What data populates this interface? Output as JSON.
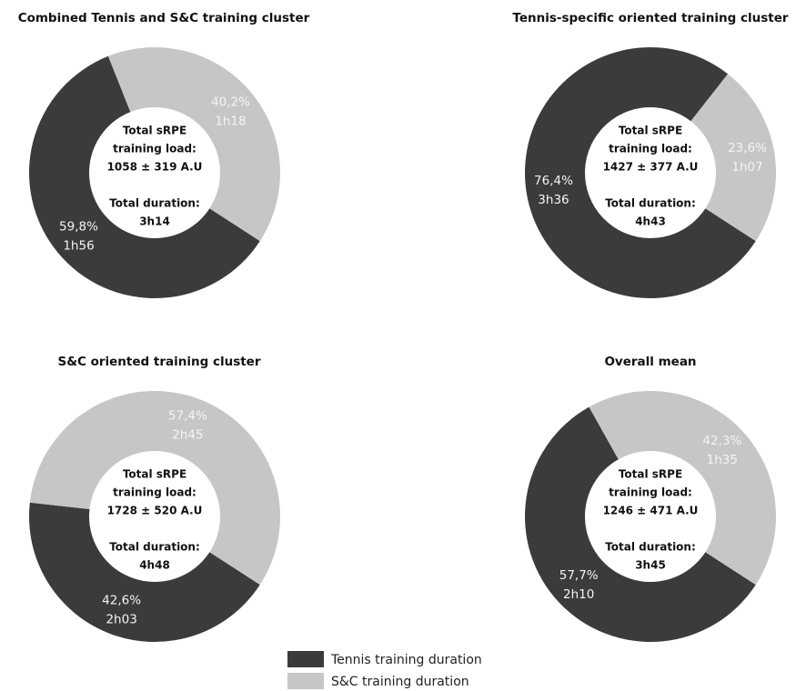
{
  "chart_data": [
    {
      "type": "pie",
      "title": "Combined Tennis and S&C training cluster",
      "values": [
        59.8,
        40.2
      ],
      "value_labels": [
        "59,8%",
        "40,2%"
      ],
      "duration_labels": [
        "1h56",
        "1h18"
      ],
      "center_text": [
        "Total sRPE",
        "training load:",
        "1058 ± 319 A.U",
        "Total duration:",
        "3h14"
      ]
    },
    {
      "type": "pie",
      "title": "Tennis-specific oriented training cluster",
      "values": [
        76.4,
        23.6
      ],
      "value_labels": [
        "76,4%",
        "23,6%"
      ],
      "duration_labels": [
        "3h36",
        "1h07"
      ],
      "center_text": [
        "Total sRPE",
        "training load:",
        "1427 ± 377 A.U",
        "Total duration:",
        "4h43"
      ]
    },
    {
      "type": "pie",
      "title": "S&C oriented training cluster",
      "values": [
        42.6,
        57.4
      ],
      "value_labels": [
        "42,6%",
        "57,4%"
      ],
      "duration_labels": [
        "2h03",
        "2h45"
      ],
      "center_text": [
        "Total sRPE",
        "training load:",
        "1728 ± 520  A.U",
        "Total duration:",
        "4h48"
      ]
    },
    {
      "type": "pie",
      "title": "Overall mean",
      "values": [
        57.7,
        42.3
      ],
      "value_labels": [
        "57,7%",
        "42,3%"
      ],
      "duration_labels": [
        "2h10",
        "1h35"
      ],
      "center_text": [
        "Total sRPE",
        "training load:",
        "1246 ± 471 A.U",
        "Total duration:",
        "3h45"
      ]
    }
  ],
  "legend": {
    "labels": [
      "Tennis training duration",
      "S&C training duration"
    ],
    "colors": [
      "#3b3b3b",
      "#c6c6c6"
    ]
  }
}
